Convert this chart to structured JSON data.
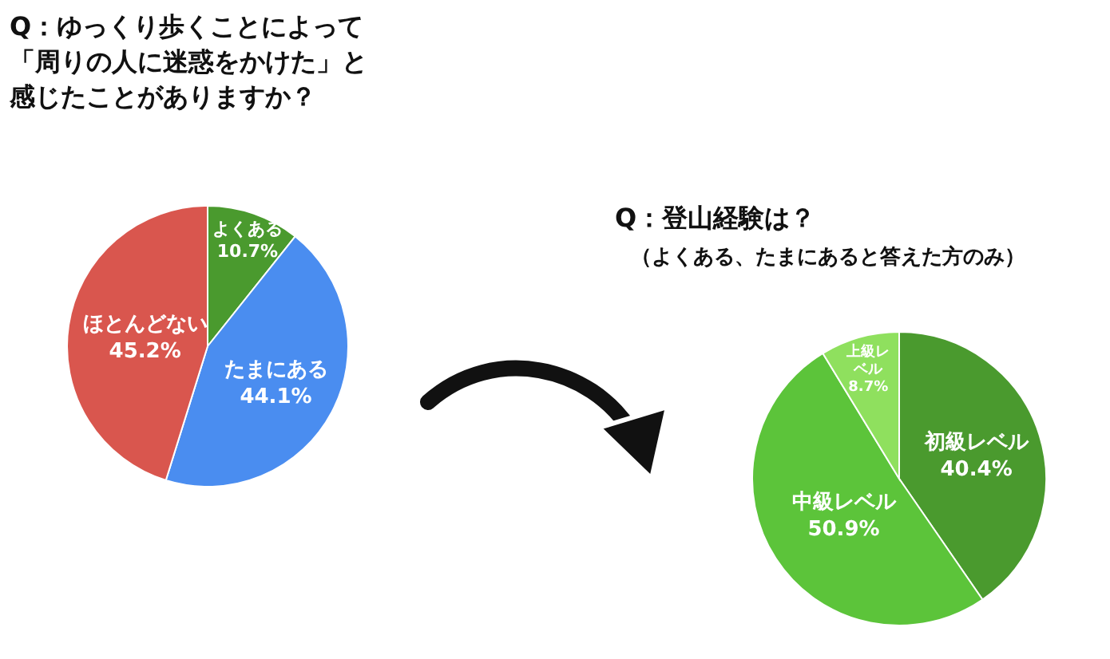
{
  "chart_data": [
    {
      "type": "pie",
      "title": "Q：ゆっくり歩くことによって「周りの人に迷惑をかけた」と感じたことがありますか？",
      "categories": [
        "よくある",
        "たまにある",
        "ほとんどない"
      ],
      "values": [
        10.7,
        44.1,
        45.2
      ],
      "colors": [
        "#4a9a2e",
        "#4a8df0",
        "#d9564e"
      ],
      "value_labels": [
        "10.7%",
        "44.1%",
        "45.2%"
      ]
    },
    {
      "type": "pie",
      "title": "Q：登山経験は？",
      "subtitle": "（よくある、たまにあると答えた方のみ）",
      "categories": [
        "初級レベル",
        "中級レベル",
        "上級レベル"
      ],
      "values": [
        40.4,
        50.9,
        8.7
      ],
      "colors": [
        "#4a9a2e",
        "#5cc43a",
        "#8fe05e"
      ],
      "value_labels": [
        "40.4%",
        "50.9%",
        "8.7%"
      ]
    }
  ]
}
